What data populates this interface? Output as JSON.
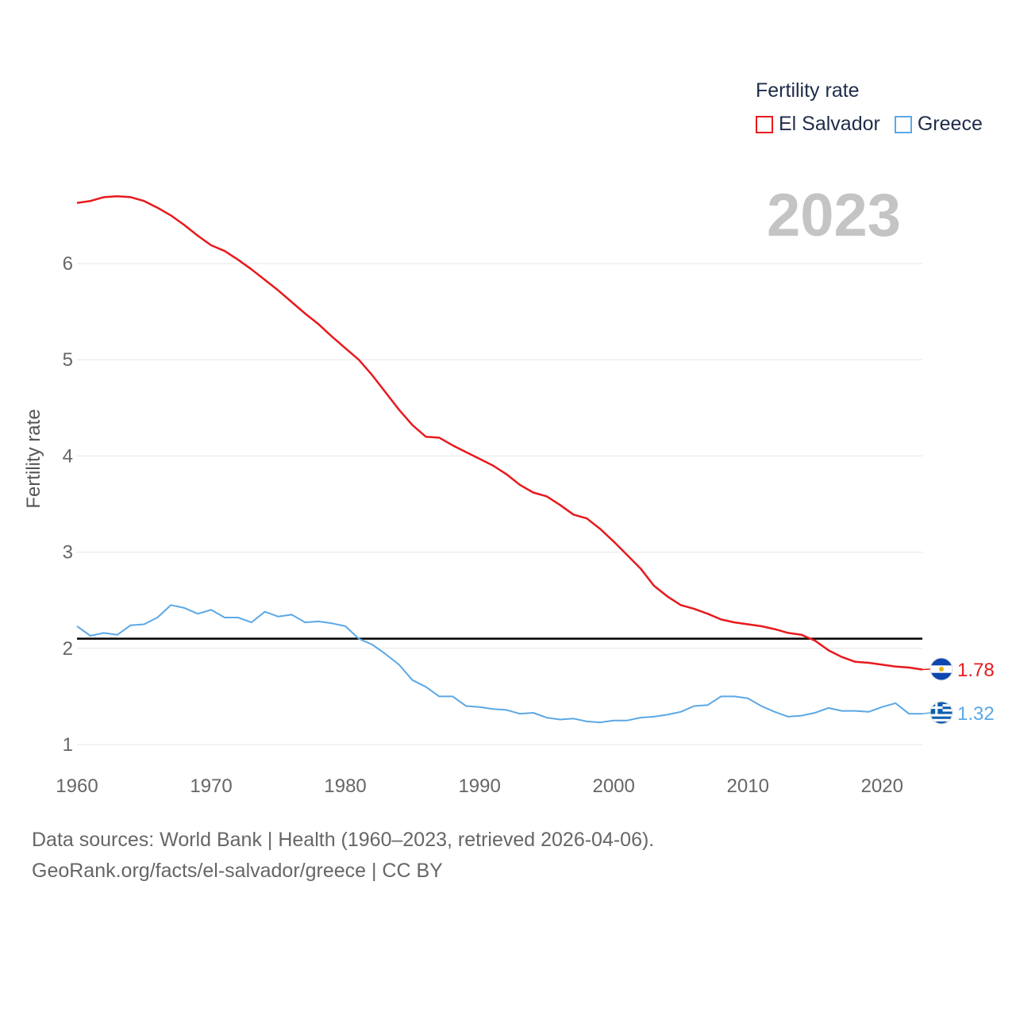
{
  "chart_data": {
    "type": "line",
    "ylabel": "Fertility rate",
    "xlabel": "",
    "xlim": [
      1960,
      2023
    ],
    "ylim": [
      0.9,
      6.9
    ],
    "xticks": [
      1960,
      1970,
      1980,
      1990,
      2000,
      2010,
      2020
    ],
    "yticks": [
      1,
      2,
      3,
      4,
      5,
      6
    ],
    "legend_title": "Fertility rate",
    "year_label": "2023",
    "reference_line": 2.1,
    "series": [
      {
        "name": "El Salvador",
        "color": "#e8191c",
        "end_label": "1.78",
        "values": [
          6.63,
          6.65,
          6.69,
          6.7,
          6.69,
          6.65,
          6.58,
          6.5,
          6.4,
          6.29,
          6.19,
          6.13,
          6.04,
          5.94,
          5.83,
          5.72,
          5.6,
          5.48,
          5.37,
          5.24,
          5.12,
          5.0,
          4.84,
          4.66,
          4.48,
          4.32,
          4.2,
          4.19,
          4.11,
          4.04,
          3.97,
          3.9,
          3.81,
          3.7,
          3.62,
          3.58,
          3.49,
          3.39,
          3.35,
          3.24,
          3.11,
          2.97,
          2.83,
          2.65,
          2.54,
          2.45,
          2.41,
          2.36,
          2.3,
          2.27,
          2.25,
          2.23,
          2.2,
          2.16,
          2.14,
          2.08,
          1.98,
          1.91,
          1.86,
          1.85,
          1.83,
          1.81,
          1.8,
          1.78
        ]
      },
      {
        "name": "Greece",
        "color": "#5ba8e6",
        "end_label": "1.32",
        "values": [
          2.23,
          2.13,
          2.16,
          2.14,
          2.24,
          2.25,
          2.32,
          2.45,
          2.42,
          2.36,
          2.4,
          2.32,
          2.32,
          2.27,
          2.38,
          2.33,
          2.35,
          2.27,
          2.28,
          2.26,
          2.23,
          2.1,
          2.04,
          1.94,
          1.83,
          1.67,
          1.6,
          1.5,
          1.5,
          1.4,
          1.39,
          1.37,
          1.36,
          1.32,
          1.33,
          1.28,
          1.26,
          1.27,
          1.24,
          1.23,
          1.25,
          1.25,
          1.28,
          1.29,
          1.31,
          1.34,
          1.4,
          1.41,
          1.5,
          1.5,
          1.48,
          1.4,
          1.34,
          1.29,
          1.3,
          1.33,
          1.38,
          1.35,
          1.35,
          1.34,
          1.39,
          1.43,
          1.32,
          1.32
        ]
      }
    ]
  },
  "footer": {
    "line1": "Data sources: World Bank | Health (1960–2023, retrieved 2026-04-06).",
    "line2": "GeoRank.org/facts/el-salvador/greece | CC BY"
  }
}
